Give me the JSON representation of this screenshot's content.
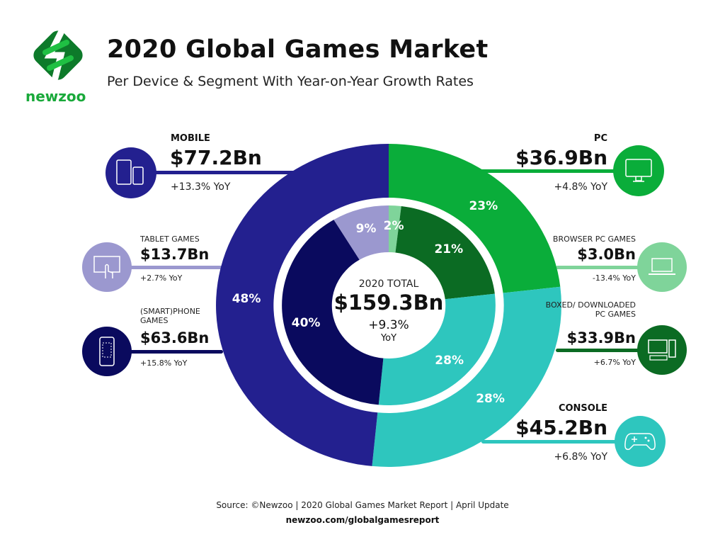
{
  "header": {
    "title": "2020 Global Games Market",
    "subtitle": "Per Device & Segment With Year-on-Year Growth Rates",
    "brand": "newzoo"
  },
  "center": {
    "label": "2020 TOTAL",
    "value": "$159.3Bn",
    "yoy": "+9.3%",
    "yoy_unit": "YoY"
  },
  "footer": {
    "source": "Source: ©Newzoo | 2020 Global Games Market Report | April Update",
    "url": "newzoo.com/globalgamesreport"
  },
  "chart_data": [
    {
      "type": "pie",
      "ring": "outer",
      "unit": "$Bn",
      "slices": [
        {
          "name": "PC",
          "value": 36.9,
          "value_label": "$36.9Bn",
          "percent_label": "23%",
          "yoy": "+4.8% YoY",
          "color": "#0aad3a",
          "icon": "monitor-icon"
        },
        {
          "name": "CONSOLE",
          "value": 45.2,
          "value_label": "$45.2Bn",
          "percent_label": "28%",
          "yoy": "+6.8% YoY",
          "color": "#2ec6be",
          "icon": "gamepad-icon"
        },
        {
          "name": "MOBILE",
          "value": 77.2,
          "value_label": "$77.2Bn",
          "percent_label": "48%",
          "yoy": "+13.3% YoY",
          "color": "#23208f",
          "icon": "mobile-devices-icon"
        }
      ]
    },
    {
      "type": "pie",
      "ring": "inner",
      "unit": "$Bn",
      "slices": [
        {
          "name": "BROWSER PC GAMES",
          "value": 3.0,
          "value_label": "$3.0Bn",
          "percent_label": "2%",
          "yoy": "-13.4% YoY",
          "color": "#7fd49a",
          "icon": "laptop-icon"
        },
        {
          "name": "BOXED/ DOWNLOADED PC GAMES",
          "value": 33.9,
          "value_label": "$33.9Bn",
          "percent_label": "21%",
          "yoy": "+6.7% YoY",
          "color": "#0b6b23",
          "icon": "desktop-pc-icon"
        },
        {
          "name": "CONSOLE",
          "value": 45.2,
          "value_label": "",
          "percent_label": "28%",
          "yoy": "",
          "color": "#2ec6be",
          "icon": ""
        },
        {
          "name": "(SMART)PHONE GAMES",
          "value": 63.6,
          "value_label": "$63.6Bn",
          "percent_label": "40%",
          "yoy": "+15.8% YoY",
          "color": "#0a0a5e",
          "icon": "smartphone-icon"
        },
        {
          "name": "TABLET GAMES",
          "value": 13.7,
          "value_label": "$13.7Bn",
          "percent_label": "9%",
          "yoy": "+2.7% YoY",
          "color": "#9b98cf",
          "icon": "tablet-touch-icon"
        }
      ]
    }
  ]
}
